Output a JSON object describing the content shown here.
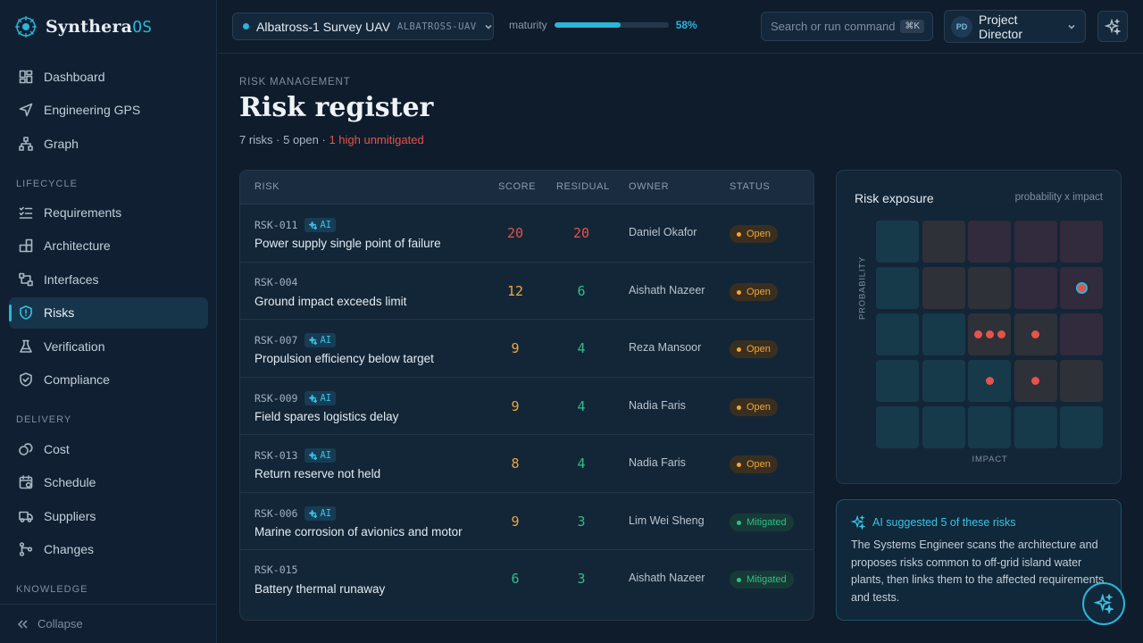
{
  "app": {
    "name": "Synthera",
    "name_suffix": "OS"
  },
  "sidebar": {
    "top_items": [
      {
        "label": "Dashboard",
        "icon": "grid-icon"
      },
      {
        "label": "Engineering GPS",
        "icon": "navigation-icon"
      },
      {
        "label": "Graph",
        "icon": "graph-icon"
      }
    ],
    "sections": {
      "lifecycle": "LIFECYCLE",
      "delivery": "DELIVERY",
      "knowledge": "KNOWLEDGE"
    },
    "lifecycle_items": [
      {
        "label": "Requirements",
        "icon": "checklist-icon"
      },
      {
        "label": "Architecture",
        "icon": "blocks-icon"
      },
      {
        "label": "Interfaces",
        "icon": "interfaces-icon"
      },
      {
        "label": "Risks",
        "icon": "shield-icon",
        "active": true
      },
      {
        "label": "Verification",
        "icon": "flask-icon"
      },
      {
        "label": "Compliance",
        "icon": "shield-check-icon"
      }
    ],
    "delivery_items": [
      {
        "label": "Cost",
        "icon": "coins-icon"
      },
      {
        "label": "Schedule",
        "icon": "calendar-icon"
      },
      {
        "label": "Suppliers",
        "icon": "truck-icon"
      },
      {
        "label": "Changes",
        "icon": "branch-icon"
      }
    ],
    "collapse_label": "Collapse"
  },
  "topbar": {
    "project_name": "Albatross-1 Survey UAV",
    "project_code": "ALBATROSS-UAV",
    "maturity_label": "maturity",
    "maturity_value": 0.58,
    "maturity_pct": "58%",
    "search_placeholder": "Search or run command",
    "search_shortcut": "⌘K",
    "user_initials": "PD",
    "user_role": "Project Director"
  },
  "page": {
    "eyebrow": "RISK MANAGEMENT",
    "title": "Risk register",
    "summary": "7 risks · 5 open · ",
    "summary_alert": "1 high unmitigated"
  },
  "table": {
    "columns": {
      "risk": "RISK",
      "score": "SCORE",
      "residual": "RESIDUAL",
      "owner": "OWNER",
      "status": "STATUS"
    },
    "ai_tag": "AI",
    "rows": [
      {
        "id": "RSK-011",
        "ai": true,
        "title": "Power supply single point of failure",
        "score": "20",
        "residual": "20",
        "owner": "Daniel Okafor",
        "status": "Open"
      },
      {
        "id": "RSK-004",
        "ai": false,
        "title": "Ground impact exceeds limit",
        "score": "12",
        "residual": "6",
        "owner": "Aishath Nazeer",
        "status": "Open"
      },
      {
        "id": "RSK-007",
        "ai": true,
        "title": "Propulsion efficiency below target",
        "score": "9",
        "residual": "4",
        "owner": "Reza Mansoor",
        "status": "Open"
      },
      {
        "id": "RSK-009",
        "ai": true,
        "title": "Field spares logistics delay",
        "score": "9",
        "residual": "4",
        "owner": "Nadia Faris",
        "status": "Open"
      },
      {
        "id": "RSK-013",
        "ai": true,
        "title": "Return reserve not held",
        "score": "8",
        "residual": "4",
        "owner": "Nadia Faris",
        "status": "Open"
      },
      {
        "id": "RSK-006",
        "ai": true,
        "title": "Marine corrosion of avionics and motor",
        "score": "9",
        "residual": "3",
        "owner": "Lim Wei Sheng",
        "status": "Mitigated"
      },
      {
        "id": "RSK-015",
        "ai": false,
        "title": "Battery thermal runaway",
        "score": "6",
        "residual": "3",
        "owner": "Aishath Nazeer",
        "status": "Mitigated"
      }
    ]
  },
  "exposure": {
    "title": "Risk exposure",
    "subtitle": "probability x impact",
    "y_axis": "PROBABILITY",
    "x_axis": "IMPACT",
    "matrix_counts": [
      [
        0,
        0,
        0,
        0,
        0
      ],
      [
        0,
        0,
        0,
        0,
        1
      ],
      [
        0,
        0,
        3,
        1,
        0
      ],
      [
        0,
        0,
        1,
        1,
        0
      ],
      [
        0,
        0,
        0,
        0,
        0
      ]
    ],
    "highlight_cell": {
      "row": 1,
      "col": 4
    },
    "matrix_levels": [
      [
        "low",
        "med",
        "high",
        "high",
        "high"
      ],
      [
        "low",
        "med",
        "med",
        "high",
        "high"
      ],
      [
        "low",
        "low",
        "med",
        "med",
        "high"
      ],
      [
        "low",
        "low",
        "low",
        "med",
        "med"
      ],
      [
        "low",
        "low",
        "low",
        "low",
        "low"
      ]
    ],
    "level_colors": {
      "low": "#163a4a",
      "med": "#2f3138",
      "high": "#312b3d"
    }
  },
  "ai_panel": {
    "title": "AI suggested 5 of these risks",
    "body": "The Systems Engineer scans the architecture and proposes risks common to off-grid island water plants, then links them to the affected requirements and tests."
  },
  "colors": {
    "accent": "#2bb5d8",
    "score_high": "#e5534b",
    "score_med": "#f0a63b",
    "score_low": "#2fbf8a"
  }
}
